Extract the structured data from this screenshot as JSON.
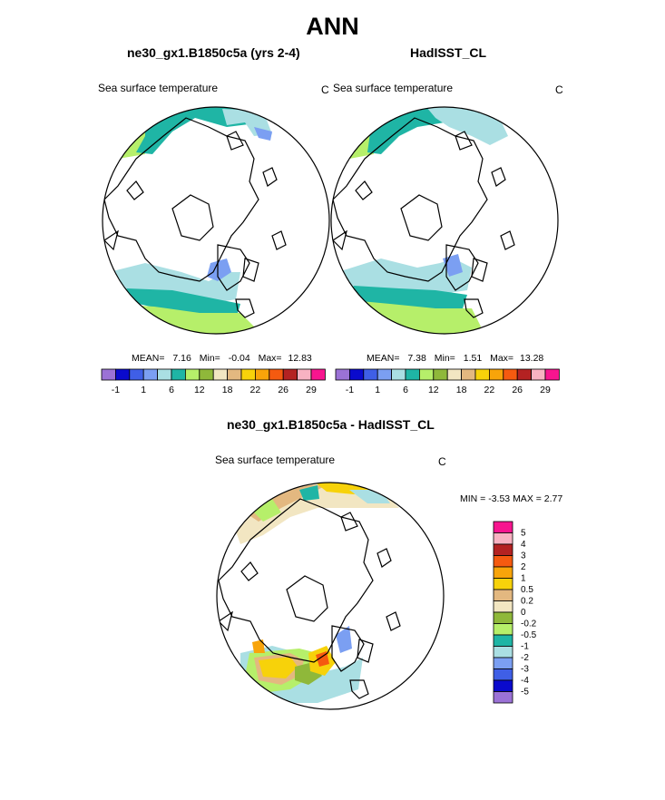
{
  "page": {
    "title": "ANN",
    "panels": [
      {
        "name": "ne30_gx1.B1850c5a (yrs 2-4)",
        "variable": "Sea surface temperature",
        "units": "C",
        "stats": {
          "mean_label": "MEAN=",
          "mean": "7.16",
          "min_label": "Min=",
          "min": "-0.04",
          "max_label": "Max=",
          "max": "12.83"
        }
      },
      {
        "name": "HadISST_CL",
        "variable": "Sea surface temperature",
        "units": "C",
        "stats": {
          "mean_label": "MEAN=",
          "mean": "7.38",
          "min_label": "Min=",
          "min": "1.51",
          "max_label": "Max=",
          "max": "13.28"
        }
      }
    ],
    "diff_panel": {
      "name": "ne30_gx1.B1850c5a - HadISST_CL",
      "variable": "Sea surface temperature",
      "units": "C",
      "stats_text": "MIN =  -3.53 MAX =   2.77"
    }
  },
  "colorbar_top": {
    "colors": [
      "#9b72d6",
      "#0a0acd",
      "#3f5fe6",
      "#7b9ff2",
      "#aadfe3",
      "#1fb5a5",
      "#b6ef6a",
      "#8fb83a",
      "#f2e6c2",
      "#e3b880",
      "#f7d20a",
      "#f8a40a",
      "#f55a10",
      "#b42222",
      "#f8b2c2",
      "#f7158f"
    ],
    "labels": [
      "-1",
      "1",
      "6",
      "12",
      "18",
      "22",
      "26",
      "29"
    ]
  },
  "colorbar_diff": {
    "colors": [
      "#f7158f",
      "#f8b2c2",
      "#b42222",
      "#f55a10",
      "#f8a40a",
      "#f7d20a",
      "#e3b880",
      "#f2e6c2",
      "#8fb83a",
      "#b6ef6a",
      "#1fb5a5",
      "#aadfe3",
      "#7b9ff2",
      "#3f5fe6",
      "#0a0acd",
      "#9b72d6"
    ],
    "labels": [
      "5",
      "4",
      "3",
      "2",
      "1",
      "0.5",
      "0.2",
      "0",
      "-0.2",
      "-0.5",
      "-1",
      "-2",
      "-3",
      "-4",
      "-5"
    ]
  },
  "map_colors": {
    "land": "#ffffff",
    "coast": "#000000",
    "teal": "#1fb5a5",
    "lightcyan": "#aadfe3",
    "lightgreen": "#b6ef6a",
    "olive": "#8fb83a",
    "lightblue": "#7b9ff2",
    "yellow": "#f7d20a",
    "tan": "#e3b880",
    "orange": "#f8a40a",
    "red": "#f55a10",
    "cream": "#f2e6c2"
  }
}
